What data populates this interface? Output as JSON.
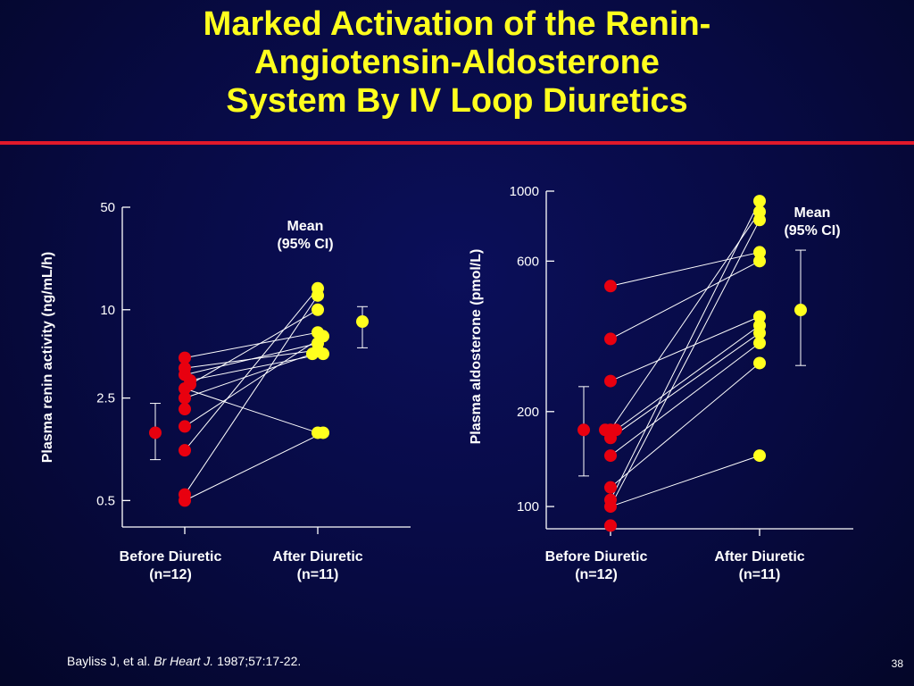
{
  "slide": {
    "title_lines": [
      "Marked Activation of the Renin-",
      "Angiotensin-Aldosterone",
      "System By IV Loop Diuretics"
    ],
    "citation": {
      "authors": "Bayliss J, et al.",
      "journal": "Br Heart J.",
      "details": "1987;57:17-22."
    },
    "page_number": "38"
  },
  "colors": {
    "title": "#ffff1e",
    "rule": "#e0192a",
    "before": "#e8000f",
    "after": "#ffff1e",
    "axis": "#ffffff"
  },
  "chart_data": [
    {
      "type": "scatter",
      "ylabel": "Plasma renin activity (ng/mL/h)",
      "yscale": "log",
      "ylim": [
        0.33,
        50
      ],
      "yticks": [
        50,
        10,
        2.5,
        0.5
      ],
      "ytick_labels": [
        "50",
        "10",
        "2.5",
        "0.5"
      ],
      "categories": [
        "Before Diuretic\n(n=12)",
        "After Diuretic\n(n=11)"
      ],
      "mean_label": "Mean\n(95% CI)",
      "before": [
        2.1,
        2.5,
        2.9,
        3.1,
        3.3,
        3.6,
        4.0,
        4.7,
        1.6,
        1.1,
        0.55,
        0.5
      ],
      "after": [
        14.0,
        12.5,
        10.0,
        7.0,
        6.6,
        5.9,
        5.3,
        5.0,
        5.0,
        1.45,
        1.45
      ],
      "pairs": [
        [
          6,
          6
        ],
        [
          5,
          5
        ],
        [
          7,
          3
        ],
        [
          3,
          2
        ],
        [
          4,
          7
        ],
        [
          1,
          8
        ],
        [
          2,
          9
        ],
        [
          8,
          4
        ],
        [
          9,
          0
        ],
        [
          10,
          1
        ],
        [
          11,
          10
        ]
      ],
      "before_mean": {
        "value": 1.45,
        "ci": [
          0.95,
          2.3
        ]
      },
      "after_mean": {
        "value": 8.3,
        "ci": [
          5.5,
          10.5
        ]
      }
    },
    {
      "type": "scatter",
      "ylabel": "Plasma aldosterone (pmol/L)",
      "yscale": "log",
      "ylim": [
        85,
        1000
      ],
      "yticks": [
        1000,
        600,
        200,
        100
      ],
      "ytick_labels": [
        "1000",
        "600",
        "200",
        "100"
      ],
      "categories": [
        "Before Diuretic\n(n=12)",
        "After Diuretic\n(n=11)"
      ],
      "mean_label": "Mean\n(95% CI)",
      "before": [
        500,
        340,
        250,
        175,
        175,
        165,
        145,
        115,
        105,
        100,
        87
      ],
      "before_side": [
        175
      ],
      "after": [
        930,
        860,
        810,
        640,
        600,
        400,
        375,
        355,
        330,
        285,
        145
      ],
      "pairs": [
        [
          0,
          3
        ],
        [
          1,
          4
        ],
        [
          2,
          5
        ],
        [
          3,
          1
        ],
        [
          4,
          6
        ],
        [
          5,
          7
        ],
        [
          6,
          8
        ],
        [
          7,
          9
        ],
        [
          8,
          0
        ],
        [
          9,
          2
        ],
        [
          9,
          10
        ]
      ],
      "before_mean": {
        "value": 175,
        "ci": [
          125,
          240
        ]
      },
      "after_mean": {
        "value": 420,
        "ci": [
          280,
          650
        ]
      }
    }
  ]
}
